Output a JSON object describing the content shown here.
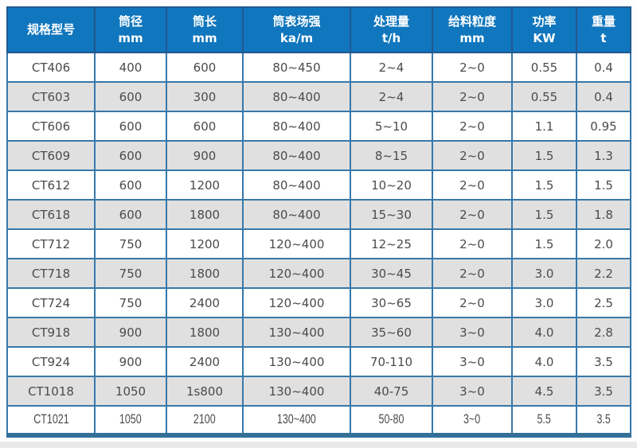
{
  "table": {
    "columns": [
      {
        "name": "规格型号",
        "unit": ""
      },
      {
        "name": "筒径",
        "unit": "mm"
      },
      {
        "name": "筒长",
        "unit": "mm"
      },
      {
        "name": "筒表场强",
        "unit": "ka/m"
      },
      {
        "name": "处理量",
        "unit": "t/h"
      },
      {
        "name": "给料粒度",
        "unit": "mm"
      },
      {
        "name": "功率",
        "unit": "KW"
      },
      {
        "name": "重量",
        "unit": "t"
      }
    ],
    "rows": [
      [
        "CT406",
        "400",
        "600",
        "80~450",
        "2~4",
        "2~0",
        "0.55",
        "0.4"
      ],
      [
        "CT603",
        "600",
        "300",
        "80~400",
        "2~4",
        "2~0",
        "0.55",
        "0.4"
      ],
      [
        "CT606",
        "600",
        "600",
        "80~400",
        "5~10",
        "2~0",
        "1.1",
        "0.95"
      ],
      [
        "CT609",
        "600",
        "900",
        "80~400",
        "8~15",
        "2~0",
        "1.5",
        "1.3"
      ],
      [
        "CT612",
        "600",
        "1200",
        "80~400",
        "10~20",
        "2~0",
        "1.5",
        "1.5"
      ],
      [
        "CT618",
        "600",
        "1800",
        "80~400",
        "15~30",
        "2~0",
        "1.5",
        "1.8"
      ],
      [
        "CT712",
        "750",
        "1200",
        "120~400",
        "12~25",
        "2~0",
        "1.5",
        "2.0"
      ],
      [
        "CT718",
        "750",
        "1800",
        "120~400",
        "30~45",
        "2~0",
        "3.0",
        "2.2"
      ],
      [
        "CT724",
        "750",
        "2400",
        "120~400",
        "30~65",
        "2~0",
        "3.0",
        "2.5"
      ],
      [
        "CT918",
        "900",
        "1800",
        "130~400",
        "35~60",
        "3~0",
        "4.0",
        "2.8"
      ],
      [
        "CT924",
        "900",
        "2400",
        "130~400",
        "70-110",
        "3~0",
        "4.0",
        "3.5"
      ],
      [
        "CT1018",
        "1050",
        "1s800",
        "130~400",
        "40-75",
        "3~0",
        "4.5",
        "3.5"
      ],
      [
        "CT1021",
        "1050",
        "2100",
        "130~400",
        "50-80",
        "3~0",
        "5.5",
        "3.5"
      ]
    ]
  },
  "colors": {
    "header_bg": "#1076bd",
    "header_text": "#ffffff",
    "cell_border": "#3778aa",
    "outer_border": "#2e6e9e",
    "alt_row_bg": "#e0e0e0",
    "body_text": "#4b4b4b",
    "page_strip": "#e9e9e9"
  }
}
